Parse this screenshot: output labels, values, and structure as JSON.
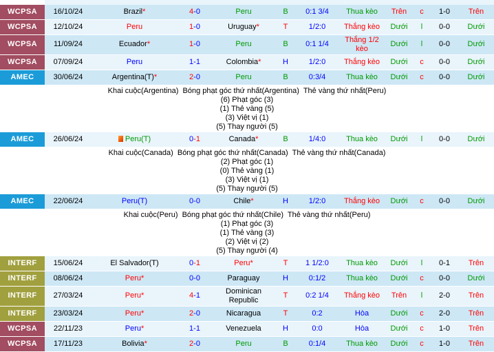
{
  "colors": {
    "red": "#ff0000",
    "green": "#009900",
    "blue": "#0000ff",
    "black": "#000000",
    "wcpsa": "#a24d61",
    "amec": "#1b9cd8",
    "interf": "#a1a03f",
    "row_dark": "#cde7f5",
    "row_light": "#e9f4fb"
  },
  "table": {
    "rows": [
      {
        "type": "match",
        "league": "WCPSA",
        "date": "16/10/24",
        "home": {
          "name": "Brazil",
          "suffix": "*",
          "color": "black"
        },
        "red_card": false,
        "score": {
          "home": "4",
          "away": "0",
          "home_color": "red",
          "away_color": "blue"
        },
        "away": {
          "name": "Peru",
          "suffix": "",
          "color": "green"
        },
        "bh": {
          "text": "B",
          "color": "green"
        },
        "odds": "0:1 3/4",
        "result": {
          "text": "Thua kèo",
          "color": "green"
        },
        "ou1": {
          "text": "Trên",
          "color": "red"
        },
        "cl": {
          "text": "c",
          "color": "red"
        },
        "score2": "1-0",
        "ou2": {
          "text": "Trên",
          "color": "red"
        }
      },
      {
        "type": "match",
        "league": "WCPSA",
        "date": "12/10/24",
        "home": {
          "name": "Peru",
          "suffix": "",
          "color": "red"
        },
        "red_card": false,
        "score": {
          "home": "1",
          "away": "0",
          "home_color": "red",
          "away_color": "blue"
        },
        "away": {
          "name": "Uruguay",
          "suffix": "*",
          "color": "black"
        },
        "bh": {
          "text": "T",
          "color": "red"
        },
        "odds": "1/2:0",
        "result": {
          "text": "Thắng kèo",
          "color": "red"
        },
        "ou1": {
          "text": "Dưới",
          "color": "green"
        },
        "cl": {
          "text": "l",
          "color": "green"
        },
        "score2": "0-0",
        "ou2": {
          "text": "Dưới",
          "color": "green"
        }
      },
      {
        "type": "match",
        "league": "WCPSA",
        "date": "11/09/24",
        "home": {
          "name": "Ecuador",
          "suffix": "*",
          "color": "black"
        },
        "red_card": false,
        "score": {
          "home": "1",
          "away": "0",
          "home_color": "red",
          "away_color": "blue"
        },
        "away": {
          "name": "Peru",
          "suffix": "",
          "color": "green"
        },
        "bh": {
          "text": "B",
          "color": "green"
        },
        "odds": "0:1 1/4",
        "result": {
          "text": "Thắng 1/2 kèo",
          "color": "red"
        },
        "ou1": {
          "text": "Dưới",
          "color": "green"
        },
        "cl": {
          "text": "l",
          "color": "green"
        },
        "score2": "0-0",
        "ou2": {
          "text": "Dưới",
          "color": "green"
        }
      },
      {
        "type": "match",
        "league": "WCPSA",
        "date": "07/09/24",
        "home": {
          "name": "Peru",
          "suffix": "",
          "color": "blue"
        },
        "red_card": false,
        "score": {
          "home": "1",
          "away": "1",
          "home_color": "blue",
          "away_color": "blue"
        },
        "away": {
          "name": "Colombia",
          "suffix": "*",
          "color": "black"
        },
        "bh": {
          "text": "H",
          "color": "blue"
        },
        "odds": "1/2:0",
        "result": {
          "text": "Thắng kèo",
          "color": "red"
        },
        "ou1": {
          "text": "Dưới",
          "color": "green"
        },
        "cl": {
          "text": "c",
          "color": "red"
        },
        "score2": "0-0",
        "ou2": {
          "text": "Dưới",
          "color": "green"
        }
      },
      {
        "type": "match",
        "league": "AMEC",
        "date": "30/06/24",
        "home": {
          "name": "Argentina(T)",
          "suffix": "*",
          "color": "black"
        },
        "red_card": false,
        "score": {
          "home": "2",
          "away": "0",
          "home_color": "red",
          "away_color": "blue"
        },
        "away": {
          "name": "Peru",
          "suffix": "",
          "color": "green"
        },
        "bh": {
          "text": "B",
          "color": "green"
        },
        "odds": "0:3/4",
        "result": {
          "text": "Thua kèo",
          "color": "green"
        },
        "ou1": {
          "text": "Dưới",
          "color": "green"
        },
        "cl": {
          "text": "c",
          "color": "red"
        },
        "score2": "0-0",
        "ou2": {
          "text": "Dưới",
          "color": "green"
        }
      },
      {
        "type": "detail",
        "lines": [
          "Khai cuộc(Argentina)  Bóng phạt góc thứ nhất(Argentina)  Thẻ vàng thứ nhất(Peru)",
          "(6) Phạt góc (3)",
          "(1) Thẻ vàng (5)",
          "(3) Việt vị (1)",
          "(5) Thay người (5)"
        ]
      },
      {
        "type": "match",
        "league": "AMEC",
        "date": "26/06/24",
        "home": {
          "name": "Peru(T)",
          "suffix": "",
          "color": "green"
        },
        "red_card": true,
        "score": {
          "home": "0",
          "away": "1",
          "home_color": "blue",
          "away_color": "red"
        },
        "away": {
          "name": "Canada",
          "suffix": "*",
          "color": "black"
        },
        "bh": {
          "text": "B",
          "color": "green"
        },
        "odds": "1/4:0",
        "result": {
          "text": "Thua kèo",
          "color": "green"
        },
        "ou1": {
          "text": "Dưới",
          "color": "green"
        },
        "cl": {
          "text": "l",
          "color": "green"
        },
        "score2": "0-0",
        "ou2": {
          "text": "Dưới",
          "color": "green"
        }
      },
      {
        "type": "detail",
        "lines": [
          "Khai cuộc(Canada)  Bóng phạt góc thứ nhất(Canada)  Thẻ vàng thứ nhất(Canada)",
          "(2) Phạt góc (1)",
          "(0) Thẻ vàng (1)",
          "(3) Việt vị (1)",
          "(5) Thay người (5)"
        ]
      },
      {
        "type": "match",
        "league": "AMEC",
        "date": "22/06/24",
        "home": {
          "name": "Peru(T)",
          "suffix": "",
          "color": "blue"
        },
        "red_card": false,
        "score": {
          "home": "0",
          "away": "0",
          "home_color": "blue",
          "away_color": "blue"
        },
        "away": {
          "name": "Chile",
          "suffix": "*",
          "color": "black"
        },
        "bh": {
          "text": "H",
          "color": "blue"
        },
        "odds": "1/2:0",
        "result": {
          "text": "Thắng kèo",
          "color": "red"
        },
        "ou1": {
          "text": "Dưới",
          "color": "green"
        },
        "cl": {
          "text": "c",
          "color": "red"
        },
        "score2": "0-0",
        "ou2": {
          "text": "Dưới",
          "color": "green"
        }
      },
      {
        "type": "detail",
        "lines": [
          "Khai cuộc(Peru)  Bóng phạt góc thứ nhất(Chile)  Thẻ vàng thứ nhất(Peru)",
          "(1) Phạt góc (3)",
          "(1) Thẻ vàng (3)",
          "(2) Việt vị (2)",
          "(5) Thay người (4)"
        ]
      },
      {
        "type": "match",
        "league": "INTERF",
        "date": "15/06/24",
        "home": {
          "name": "El Salvador(T)",
          "suffix": "",
          "color": "black"
        },
        "red_card": false,
        "score": {
          "home": "0",
          "away": "1",
          "home_color": "blue",
          "away_color": "red"
        },
        "away": {
          "name": "Peru",
          "suffix": "*",
          "color": "red"
        },
        "bh": {
          "text": "T",
          "color": "red"
        },
        "odds": "1 1/2:0",
        "result": {
          "text": "Thua kèo",
          "color": "green"
        },
        "ou1": {
          "text": "Dưới",
          "color": "green"
        },
        "cl": {
          "text": "l",
          "color": "green"
        },
        "score2": "0-1",
        "ou2": {
          "text": "Trên",
          "color": "red"
        }
      },
      {
        "type": "match",
        "league": "INTERF",
        "date": "08/06/24",
        "home": {
          "name": "Peru",
          "suffix": "*",
          "color": "red"
        },
        "red_card": false,
        "score": {
          "home": "0",
          "away": "0",
          "home_color": "blue",
          "away_color": "blue"
        },
        "away": {
          "name": "Paraguay",
          "suffix": "",
          "color": "black"
        },
        "bh": {
          "text": "H",
          "color": "blue"
        },
        "odds": "0:1/2",
        "result": {
          "text": "Thua kèo",
          "color": "green"
        },
        "ou1": {
          "text": "Dưới",
          "color": "green"
        },
        "cl": {
          "text": "c",
          "color": "red"
        },
        "score2": "0-0",
        "ou2": {
          "text": "Dưới",
          "color": "green"
        }
      },
      {
        "type": "match",
        "league": "INTERF",
        "date": "27/03/24",
        "home": {
          "name": "Peru",
          "suffix": "*",
          "color": "red"
        },
        "red_card": false,
        "score": {
          "home": "4",
          "away": "1",
          "home_color": "red",
          "away_color": "blue"
        },
        "away": {
          "name": "Dominican Republic",
          "suffix": "",
          "color": "black"
        },
        "bh": {
          "text": "T",
          "color": "red"
        },
        "odds": "0:2 1/4",
        "result": {
          "text": "Thắng kèo",
          "color": "red"
        },
        "ou1": {
          "text": "Trên",
          "color": "red"
        },
        "cl": {
          "text": "l",
          "color": "green"
        },
        "score2": "2-0",
        "ou2": {
          "text": "Trên",
          "color": "red"
        }
      },
      {
        "type": "match",
        "league": "INTERF",
        "date": "23/03/24",
        "home": {
          "name": "Peru",
          "suffix": "*",
          "color": "red"
        },
        "red_card": false,
        "score": {
          "home": "2",
          "away": "0",
          "home_color": "red",
          "away_color": "blue"
        },
        "away": {
          "name": "Nicaragua",
          "suffix": "",
          "color": "black"
        },
        "bh": {
          "text": "T",
          "color": "red"
        },
        "odds": "0:2",
        "result": {
          "text": "Hòa",
          "color": "blue"
        },
        "ou1": {
          "text": "Dưới",
          "color": "green"
        },
        "cl": {
          "text": "c",
          "color": "red"
        },
        "score2": "2-0",
        "ou2": {
          "text": "Trên",
          "color": "red"
        }
      },
      {
        "type": "match",
        "league": "WCPSA",
        "date": "22/11/23",
        "home": {
          "name": "Peru",
          "suffix": "*",
          "color": "blue"
        },
        "red_card": false,
        "score": {
          "home": "1",
          "away": "1",
          "home_color": "blue",
          "away_color": "blue"
        },
        "away": {
          "name": "Venezuela",
          "suffix": "",
          "color": "black"
        },
        "bh": {
          "text": "H",
          "color": "blue"
        },
        "odds": "0:0",
        "result": {
          "text": "Hòa",
          "color": "blue"
        },
        "ou1": {
          "text": "Dưới",
          "color": "green"
        },
        "cl": {
          "text": "c",
          "color": "red"
        },
        "score2": "1-0",
        "ou2": {
          "text": "Trên",
          "color": "red"
        }
      },
      {
        "type": "match",
        "league": "WCPSA",
        "date": "17/11/23",
        "home": {
          "name": "Bolivia",
          "suffix": "*",
          "color": "black"
        },
        "red_card": false,
        "score": {
          "home": "2",
          "away": "0",
          "home_color": "red",
          "away_color": "blue"
        },
        "away": {
          "name": "Peru",
          "suffix": "",
          "color": "green"
        },
        "bh": {
          "text": "B",
          "color": "green"
        },
        "odds": "0:1/4",
        "result": {
          "text": "Thua kèo",
          "color": "green"
        },
        "ou1": {
          "text": "Dưới",
          "color": "green"
        },
        "cl": {
          "text": "c",
          "color": "red"
        },
        "score2": "1-0",
        "ou2": {
          "text": "Trên",
          "color": "red"
        }
      }
    ]
  }
}
